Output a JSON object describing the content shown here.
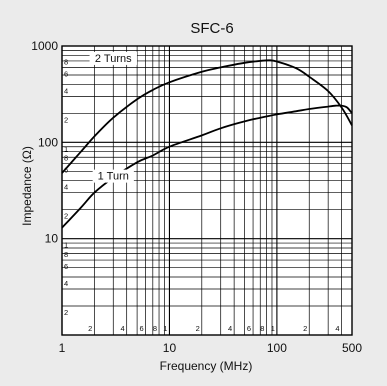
{
  "chart_data": {
    "type": "line",
    "title": "SFC-6",
    "xlabel": "Frequency (MHz)",
    "ylabel": "Impedance (Ω)",
    "x_scale": "log",
    "y_scale": "log",
    "xlim": [
      1,
      500
    ],
    "ylim": [
      1,
      1000
    ],
    "grid": true,
    "x_major_ticks": [
      {
        "value": 1,
        "label": "1"
      },
      {
        "value": 10,
        "label": "10"
      },
      {
        "value": 100,
        "label": "100"
      },
      {
        "value": 500,
        "label": "500"
      }
    ],
    "y_major_ticks": [
      {
        "value": 10,
        "label": "10"
      },
      {
        "value": 100,
        "label": "100"
      },
      {
        "value": 1000,
        "label": "1000"
      }
    ],
    "x_minor_labels": [
      {
        "value": 2,
        "label": "2"
      },
      {
        "value": 4,
        "label": "4"
      },
      {
        "value": 6,
        "label": "6"
      },
      {
        "value": 8,
        "label": "8"
      },
      {
        "value": 10,
        "label": "1"
      },
      {
        "value": 20,
        "label": "2"
      },
      {
        "value": 40,
        "label": "4"
      },
      {
        "value": 60,
        "label": "6"
      },
      {
        "value": 80,
        "label": "8"
      },
      {
        "value": 100,
        "label": "1"
      },
      {
        "value": 200,
        "label": "2"
      },
      {
        "value": 400,
        "label": "4"
      }
    ],
    "y_minor_labels": [
      {
        "value": 2,
        "label": "2"
      },
      {
        "value": 4,
        "label": "4"
      },
      {
        "value": 6,
        "label": "6"
      },
      {
        "value": 8,
        "label": "8"
      },
      {
        "value": 10,
        "label": "1"
      },
      {
        "value": 20,
        "label": "2"
      },
      {
        "value": 40,
        "label": "4"
      },
      {
        "value": 60,
        "label": "6"
      },
      {
        "value": 80,
        "label": "8"
      },
      {
        "value": 100,
        "label": "1"
      },
      {
        "value": 200,
        "label": "2"
      },
      {
        "value": 400,
        "label": "4"
      },
      {
        "value": 600,
        "label": "6"
      },
      {
        "value": 800,
        "label": "8"
      }
    ],
    "series": [
      {
        "name": "2 Turns",
        "x": [
          1,
          1.5,
          2,
          3,
          5,
          7,
          10,
          20,
          30,
          50,
          70,
          85,
          100,
          150,
          200,
          300,
          400,
          500
        ],
        "y": [
          48,
          80,
          115,
          180,
          280,
          350,
          420,
          540,
          600,
          670,
          700,
          710,
          690,
          590,
          480,
          340,
          230,
          150
        ],
        "label_at": {
          "x": 3,
          "y": 700
        }
      },
      {
        "name": "1 Turn",
        "x": [
          1,
          1.5,
          2,
          3,
          5,
          7,
          10,
          20,
          30,
          50,
          70,
          100,
          150,
          200,
          300,
          350,
          400,
          450,
          500
        ],
        "y": [
          13,
          21,
          30,
          43,
          62,
          73,
          90,
          118,
          140,
          165,
          180,
          195,
          210,
          222,
          235,
          240,
          240,
          230,
          200
        ],
        "label_at": {
          "x": 3,
          "y": 42
        }
      }
    ]
  }
}
